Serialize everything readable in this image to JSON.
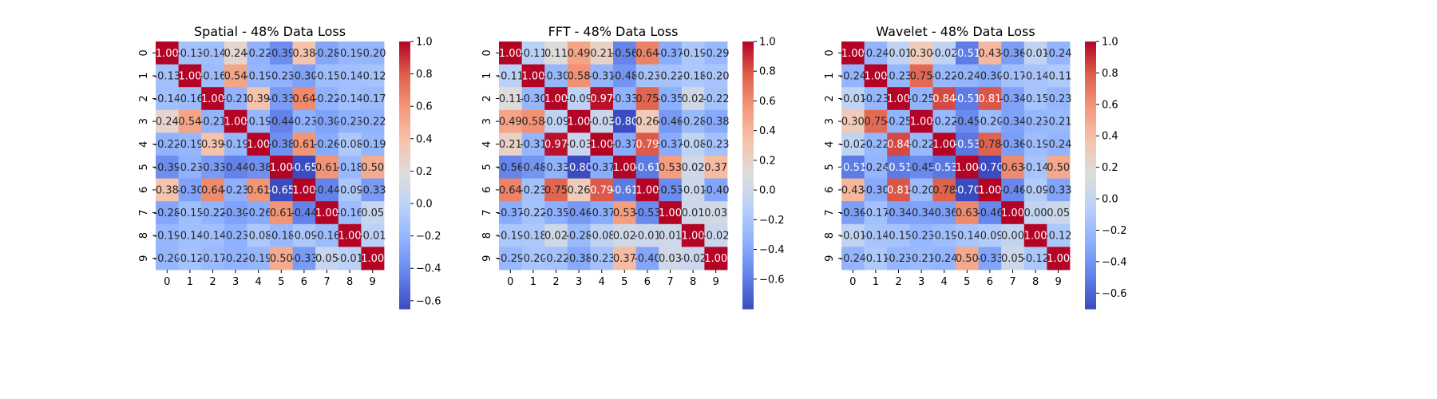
{
  "chart_data": [
    {
      "type": "heatmap",
      "title": "Spatial - 48% Data Loss",
      "xlabel": "",
      "ylabel": "",
      "x_categories": [
        "0",
        "1",
        "2",
        "3",
        "4",
        "5",
        "6",
        "7",
        "8",
        "9"
      ],
      "y_categories": [
        "0",
        "1",
        "2",
        "3",
        "4",
        "5",
        "6",
        "7",
        "8",
        "9"
      ],
      "colormap": "coolwarm",
      "vmin": -0.65,
      "vmax": 1.0,
      "colorbar_ticks": [
        "-0.6",
        "-0.4",
        "-0.2",
        "0.0",
        "0.2",
        "0.4",
        "0.6",
        "0.8",
        "1.0"
      ],
      "annot_format": "2 decimals",
      "values": [
        [
          1.0,
          -0.13,
          -0.14,
          0.24,
          -0.22,
          -0.39,
          0.38,
          -0.28,
          -0.19,
          -0.2
        ],
        [
          -0.13,
          1.0,
          -0.16,
          0.54,
          -0.19,
          -0.23,
          -0.3,
          -0.15,
          -0.14,
          -0.12
        ],
        [
          -0.14,
          -0.16,
          1.0,
          -0.21,
          0.39,
          -0.33,
          0.64,
          -0.22,
          -0.14,
          -0.17
        ],
        [
          0.24,
          0.54,
          -0.21,
          1.0,
          -0.19,
          -0.44,
          -0.23,
          -0.3,
          -0.23,
          -0.22
        ],
        [
          -0.22,
          -0.19,
          0.39,
          -0.19,
          1.0,
          -0.38,
          0.61,
          -0.26,
          -0.08,
          -0.19
        ],
        [
          -0.39,
          -0.23,
          -0.33,
          -0.44,
          -0.38,
          1.0,
          -0.65,
          0.61,
          -0.18,
          0.5
        ],
        [
          0.38,
          -0.3,
          0.64,
          -0.23,
          0.61,
          -0.65,
          1.0,
          -0.44,
          -0.09,
          -0.33
        ],
        [
          -0.28,
          -0.15,
          -0.22,
          -0.3,
          -0.26,
          0.61,
          -0.44,
          1.0,
          -0.16,
          0.05
        ],
        [
          -0.19,
          -0.14,
          -0.14,
          -0.23,
          -0.08,
          -0.18,
          -0.09,
          -0.16,
          1.0,
          -0.01
        ],
        [
          -0.2,
          -0.12,
          -0.17,
          -0.22,
          -0.19,
          0.5,
          -0.33,
          0.05,
          -0.01,
          1.0
        ]
      ]
    },
    {
      "type": "heatmap",
      "title": "FFT - 48% Data Loss",
      "xlabel": "",
      "ylabel": "",
      "x_categories": [
        "0",
        "1",
        "2",
        "3",
        "4",
        "5",
        "6",
        "7",
        "8",
        "9"
      ],
      "y_categories": [
        "0",
        "1",
        "2",
        "3",
        "4",
        "5",
        "6",
        "7",
        "8",
        "9"
      ],
      "colormap": "coolwarm",
      "vmin": -0.8,
      "vmax": 1.0,
      "colorbar_ticks": [
        "-0.6",
        "-0.4",
        "-0.2",
        "0.0",
        "0.2",
        "0.4",
        "0.6",
        "0.8",
        "1.0"
      ],
      "annot_format": "2 decimals",
      "values": [
        [
          1.0,
          -0.11,
          0.11,
          0.49,
          0.21,
          -0.56,
          0.64,
          -0.37,
          -0.19,
          -0.29
        ],
        [
          -0.11,
          1.0,
          -0.3,
          0.58,
          -0.31,
          -0.48,
          -0.23,
          -0.22,
          -0.18,
          -0.2
        ],
        [
          0.11,
          -0.3,
          1.0,
          -0.09,
          0.97,
          -0.33,
          0.75,
          -0.35,
          0.02,
          -0.22
        ],
        [
          0.49,
          0.58,
          -0.09,
          1.0,
          -0.03,
          -0.8,
          0.26,
          -0.46,
          -0.28,
          -0.38
        ],
        [
          0.21,
          -0.31,
          0.97,
          -0.03,
          1.0,
          -0.37,
          0.79,
          -0.37,
          -0.08,
          -0.23
        ],
        [
          -0.56,
          -0.48,
          -0.33,
          -0.8,
          -0.37,
          1.0,
          -0.61,
          0.53,
          0.02,
          0.37
        ],
        [
          0.64,
          -0.23,
          0.75,
          0.26,
          0.79,
          -0.61,
          1.0,
          -0.53,
          -0.01,
          -0.4
        ],
        [
          -0.37,
          -0.22,
          -0.35,
          -0.46,
          -0.37,
          0.53,
          -0.53,
          1.0,
          0.01,
          0.03
        ],
        [
          -0.19,
          -0.18,
          0.02,
          -0.28,
          -0.08,
          0.02,
          -0.01,
          0.01,
          1.0,
          -0.02
        ],
        [
          -0.29,
          -0.2,
          -0.22,
          -0.38,
          -0.23,
          0.37,
          -0.4,
          0.03,
          -0.02,
          1.0
        ]
      ]
    },
    {
      "type": "heatmap",
      "title": "Wavelet - 48% Data Loss",
      "xlabel": "",
      "ylabel": "",
      "x_categories": [
        "0",
        "1",
        "2",
        "3",
        "4",
        "5",
        "6",
        "7",
        "8",
        "9"
      ],
      "y_categories": [
        "0",
        "1",
        "2",
        "3",
        "4",
        "5",
        "6",
        "7",
        "8",
        "9"
      ],
      "colormap": "coolwarm",
      "vmin": -0.7,
      "vmax": 1.0,
      "colorbar_ticks": [
        "-0.6",
        "-0.4",
        "-0.2",
        "0.0",
        "0.2",
        "0.4",
        "0.6",
        "0.8",
        "1.0"
      ],
      "annot_format": "2 decimals",
      "values": [
        [
          1.0,
          -0.24,
          -0.01,
          0.3,
          -0.02,
          -0.51,
          0.43,
          -0.36,
          -0.01,
          -0.24
        ],
        [
          -0.24,
          1.0,
          -0.23,
          0.75,
          -0.22,
          -0.24,
          -0.3,
          -0.17,
          -0.14,
          -0.11
        ],
        [
          -0.01,
          -0.23,
          1.0,
          -0.25,
          0.84,
          -0.51,
          0.81,
          -0.34,
          -0.15,
          -0.23
        ],
        [
          0.3,
          0.75,
          -0.25,
          1.0,
          -0.22,
          -0.45,
          -0.2,
          -0.34,
          -0.23,
          -0.21
        ],
        [
          -0.02,
          -0.22,
          0.84,
          -0.22,
          1.0,
          -0.53,
          0.78,
          -0.36,
          -0.19,
          -0.24
        ],
        [
          -0.51,
          -0.24,
          -0.51,
          -0.45,
          -0.53,
          1.0,
          -0.7,
          0.63,
          -0.14,
          0.5
        ],
        [
          0.43,
          -0.3,
          0.81,
          -0.2,
          0.78,
          -0.7,
          1.0,
          -0.46,
          -0.09,
          -0.33
        ],
        [
          -0.36,
          -0.17,
          -0.34,
          -0.34,
          -0.36,
          0.63,
          -0.46,
          1.0,
          -0.0,
          0.05
        ],
        [
          -0.01,
          -0.14,
          -0.15,
          -0.23,
          -0.19,
          -0.14,
          -0.09,
          -0.0,
          1.0,
          -0.12
        ],
        [
          -0.24,
          -0.11,
          -0.23,
          -0.21,
          -0.24,
          0.5,
          -0.33,
          0.05,
          -0.12,
          1.0
        ]
      ]
    }
  ]
}
